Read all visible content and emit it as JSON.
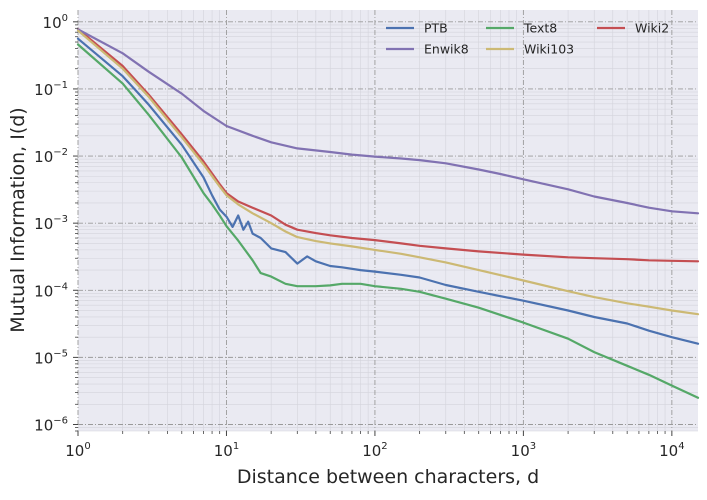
{
  "chart_data": {
    "type": "line",
    "title": "",
    "xlabel": "Distance between characters, d",
    "ylabel": "Mutual Information, I(d)",
    "xscale": "log",
    "yscale": "log",
    "xlim": [
      1,
      15000
    ],
    "ylim": [
      8e-07,
      1.5
    ],
    "grid": true,
    "legend_position": "top-right",
    "legend_columns": 3,
    "x_ticks": [
      {
        "value": 1,
        "base": "10",
        "exp": "0"
      },
      {
        "value": 10,
        "base": "10",
        "exp": "1"
      },
      {
        "value": 100,
        "base": "10",
        "exp": "2"
      },
      {
        "value": 1000,
        "base": "10",
        "exp": "3"
      },
      {
        "value": 10000,
        "base": "10",
        "exp": "4"
      }
    ],
    "y_ticks": [
      {
        "value": 1,
        "base": "10",
        "exp": "0"
      },
      {
        "value": 0.1,
        "base": "10",
        "exp": "−1"
      },
      {
        "value": 0.01,
        "base": "10",
        "exp": "−2"
      },
      {
        "value": 0.001,
        "base": "10",
        "exp": "−3"
      },
      {
        "value": 0.0001,
        "base": "10",
        "exp": "−4"
      },
      {
        "value": 1e-05,
        "base": "10",
        "exp": "−5"
      },
      {
        "value": 1e-06,
        "base": "10",
        "exp": "−6"
      }
    ],
    "series": [
      {
        "name": "PTB",
        "color": "#4c72b0",
        "x": [
          1,
          2,
          3,
          5,
          7,
          8,
          9,
          10,
          11,
          12,
          13,
          14,
          15,
          17,
          20,
          25,
          30,
          35,
          40,
          50,
          60,
          80,
          100,
          150,
          200,
          300,
          500,
          1000,
          2000,
          3000,
          5000,
          7000,
          10000,
          15000
        ],
        "y": [
          0.56,
          0.155,
          0.058,
          0.0147,
          0.0048,
          0.0026,
          0.0016,
          0.00125,
          0.00088,
          0.0013,
          0.0008,
          0.00105,
          0.0007,
          0.0006,
          0.00042,
          0.00037,
          0.00025,
          0.00032,
          0.00027,
          0.00023,
          0.00022,
          0.0002,
          0.00019,
          0.00017,
          0.000155,
          0.00012,
          9.5e-05,
          7e-05,
          5e-05,
          4e-05,
          3.2e-05,
          2.5e-05,
          2e-05,
          1.6e-05
        ]
      },
      {
        "name": "Text8",
        "color": "#55a868",
        "x": [
          1,
          2,
          3,
          5,
          7,
          8,
          9,
          10,
          12,
          15,
          17,
          20,
          25,
          30,
          40,
          50,
          60,
          80,
          100,
          150,
          200,
          300,
          500,
          1000,
          2000,
          3000,
          5000,
          7000,
          10000,
          15000
        ],
        "y": [
          0.46,
          0.12,
          0.041,
          0.0095,
          0.0028,
          0.0019,
          0.0013,
          0.0009,
          0.00055,
          0.00028,
          0.00018,
          0.00016,
          0.000125,
          0.000115,
          0.000115,
          0.000118,
          0.000125,
          0.000125,
          0.000115,
          0.000105,
          9.5e-05,
          7.5e-05,
          5.5e-05,
          3.3e-05,
          1.9e-05,
          1.2e-05,
          7.5e-06,
          5.5e-06,
          3.8e-06,
          2.5e-06
        ]
      },
      {
        "name": "Wiki2",
        "color": "#c44e52",
        "x": [
          1,
          2,
          3,
          5,
          7,
          8,
          9,
          10,
          12,
          15,
          20,
          25,
          30,
          40,
          50,
          70,
          100,
          150,
          200,
          300,
          500,
          1000,
          2000,
          3000,
          5000,
          7000,
          10000,
          15000
        ],
        "y": [
          0.78,
          0.22,
          0.082,
          0.021,
          0.0083,
          0.0055,
          0.0038,
          0.0028,
          0.0021,
          0.0017,
          0.0013,
          0.00095,
          0.0008,
          0.00071,
          0.00066,
          0.0006,
          0.00056,
          0.0005,
          0.00046,
          0.00042,
          0.00038,
          0.00034,
          0.00031,
          0.0003,
          0.00029,
          0.00028,
          0.000275,
          0.00027
        ]
      },
      {
        "name": "Enwik8",
        "color": "#8172b2",
        "x": [
          1,
          2,
          3,
          5,
          7,
          10,
          15,
          20,
          30,
          50,
          70,
          100,
          150,
          200,
          300,
          500,
          700,
          1000,
          2000,
          3000,
          5000,
          7000,
          10000,
          15000
        ],
        "y": [
          0.77,
          0.34,
          0.18,
          0.085,
          0.047,
          0.028,
          0.02,
          0.016,
          0.013,
          0.0115,
          0.0105,
          0.0098,
          0.0092,
          0.0087,
          0.0078,
          0.0063,
          0.0054,
          0.0045,
          0.0032,
          0.0025,
          0.002,
          0.0017,
          0.0015,
          0.0014
        ]
      },
      {
        "name": "Wiki103",
        "color": "#ccb974",
        "x": [
          1,
          2,
          3,
          5,
          7,
          8,
          9,
          10,
          12,
          15,
          20,
          25,
          30,
          40,
          50,
          70,
          100,
          150,
          200,
          300,
          500,
          1000,
          2000,
          3000,
          5000,
          7000,
          10000,
          15000
        ],
        "y": [
          0.74,
          0.2,
          0.076,
          0.019,
          0.0075,
          0.005,
          0.0035,
          0.0026,
          0.0019,
          0.0014,
          0.001,
          0.00075,
          0.00062,
          0.00054,
          0.0005,
          0.00045,
          0.0004,
          0.00035,
          0.00031,
          0.00026,
          0.0002,
          0.00014,
          9.7e-05,
          7.9e-05,
          6.4e-05,
          5.7e-05,
          5e-05,
          4.4e-05
        ]
      }
    ]
  }
}
